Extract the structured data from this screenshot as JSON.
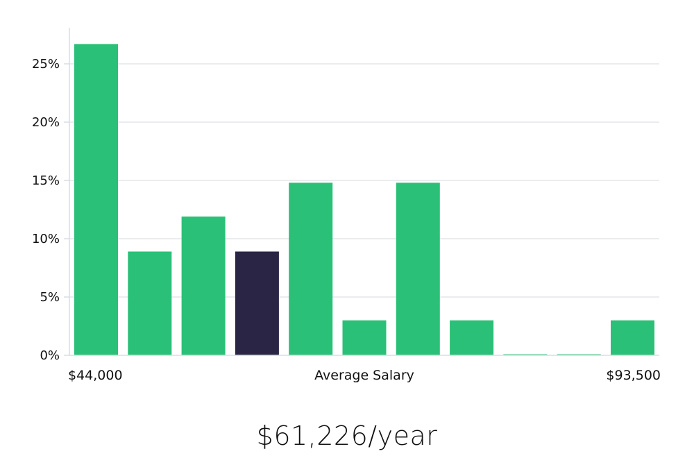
{
  "chart_data": {
    "type": "bar",
    "title": "",
    "xlabel": "Average Salary",
    "ylabel": "",
    "x_start_label": "$44,000",
    "x_end_label": "$93,500",
    "y_ticks": [
      0,
      5,
      10,
      15,
      20,
      25
    ],
    "y_tick_labels": [
      "0%",
      "5%",
      "10%",
      "15%",
      "20%",
      "25%"
    ],
    "ylim": [
      0,
      28
    ],
    "grid": true,
    "values": [
      26.7,
      8.9,
      11.9,
      8.9,
      14.8,
      3.0,
      14.8,
      3.0,
      0.0,
      0.0,
      3.0
    ],
    "highlight_index": 3,
    "colors": {
      "bar": "#2ac077",
      "highlight": "#2a2545"
    }
  },
  "summary": {
    "salary_text": "$61,226/year"
  }
}
